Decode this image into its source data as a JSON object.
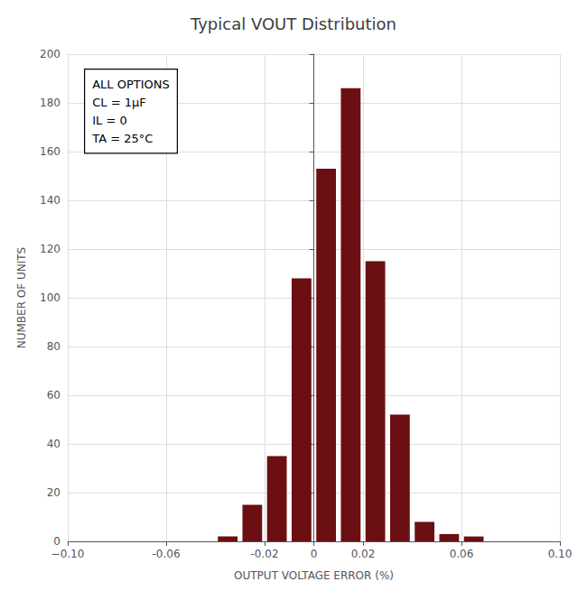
{
  "chart_data": {
    "type": "bar",
    "title": "Typical VOUT Distribution",
    "x_label": "OUTPUT VOLTAGE ERROR (%)",
    "y_label": "NUMBER OF UNITS",
    "x": [
      -0.075,
      -0.065,
      -0.055,
      -0.045,
      -0.035,
      -0.025,
      -0.015,
      -0.005,
      0.005,
      0.015,
      0.025,
      0.035,
      0.045,
      0.055,
      0.065
    ],
    "values": [
      0,
      0,
      0,
      0,
      2,
      15,
      35,
      108,
      153,
      186,
      115,
      52,
      8,
      3,
      2
    ],
    "color": "#6B0F12",
    "xlim": [
      -0.1,
      0.1
    ],
    "xticks": [
      {
        "value": -0.1,
        "label": "−0.10"
      },
      -0.06,
      -0.02,
      0,
      0.02,
      0.06,
      {
        "value": 0.1,
        "label": "0.10"
      }
    ],
    "ylim": [
      0,
      200
    ],
    "yticks": [
      0,
      20,
      40,
      60,
      80,
      100,
      120,
      140,
      160,
      180,
      200
    ],
    "annotations": [
      "ALL OPTIONS",
      "CL = 1μF",
      "IL = 0",
      "TA = 25°C"
    ],
    "grid": true
  }
}
